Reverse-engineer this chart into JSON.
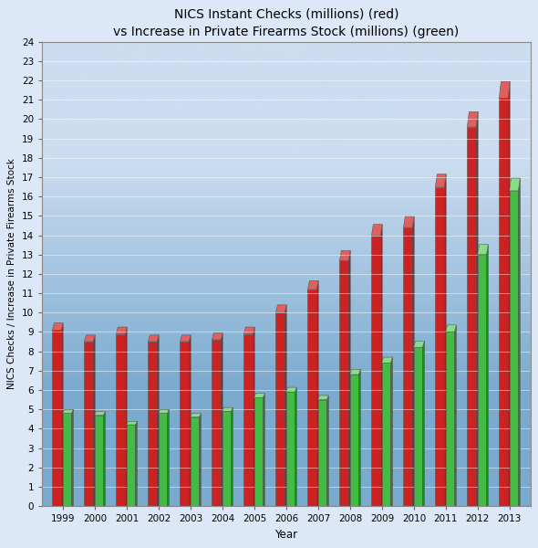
{
  "title": "NICS Instant Checks (millions) (red)",
  "subtitle": "vs Increase in Private Firearms Stock (millions) (green)",
  "xlabel": "Year",
  "ylabel": "NICS Checks / Increase in Private Firearms Stock",
  "years": [
    1999,
    2000,
    2001,
    2002,
    2003,
    2004,
    2005,
    2006,
    2007,
    2008,
    2009,
    2010,
    2011,
    2012,
    2013
  ],
  "nics_red": [
    9.1,
    8.5,
    8.9,
    8.5,
    8.5,
    8.6,
    8.9,
    10.0,
    11.2,
    12.7,
    14.0,
    14.4,
    16.5,
    19.6,
    21.1
  ],
  "private_green": [
    4.8,
    4.7,
    4.2,
    4.8,
    4.6,
    4.9,
    5.6,
    5.9,
    5.5,
    6.8,
    7.4,
    8.2,
    9.0,
    13.0,
    16.3
  ],
  "red_front": "#cc2222",
  "red_side": "#992222",
  "red_top": "#e06060",
  "green_front": "#44bb44",
  "green_side": "#228822",
  "green_top": "#88dd88",
  "ylim": [
    0,
    24
  ],
  "yticks": [
    0,
    1,
    2,
    3,
    4,
    5,
    6,
    7,
    8,
    9,
    10,
    11,
    12,
    13,
    14,
    15,
    16,
    17,
    18,
    19,
    20,
    21,
    22,
    23,
    24
  ],
  "bg_gradient_top": "#dce8f8",
  "bg_gradient_bottom": "#8aaace",
  "plot_bg_top": "#ccddf0",
  "plot_bg_bottom": "#7aaace",
  "title_fontsize": 10,
  "subtitle_fontsize": 8.5,
  "tick_fontsize": 7.5,
  "ylabel_fontsize": 7.5,
  "xlabel_fontsize": 8.5
}
